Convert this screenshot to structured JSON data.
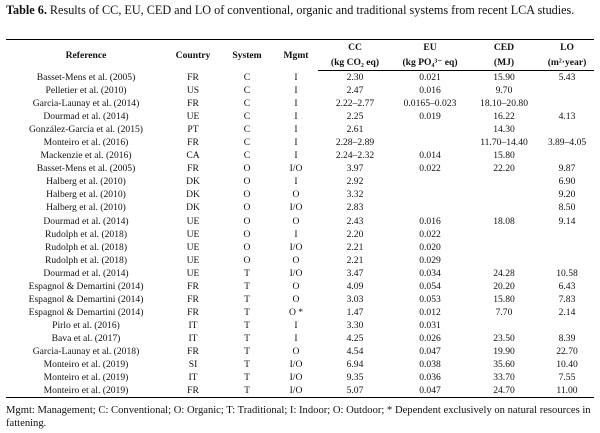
{
  "caption": {
    "label": "Table 6.",
    "text": "Results of CC, EU, CED and LO of conventional, organic and traditional systems from recent LCA studies."
  },
  "headers": {
    "reference": "Reference",
    "country": "Country",
    "system": "System",
    "mgmt": "Mgmt",
    "cc": "CC",
    "eu": "EU",
    "ced": "CED",
    "lo": "LO",
    "cc_unit": "(kg CO₂ eq)",
    "eu_unit": "(kg PO₄³⁻ eq)",
    "ced_unit": "(MJ)",
    "lo_unit": "(m²·year)"
  },
  "rows": [
    {
      "reference": "Basset-Mens et al. (2005)",
      "country": "FR",
      "system": "C",
      "mgmt": "I",
      "cc": "2.30",
      "eu": "0.021",
      "ced": "15.90",
      "lo": "5.43"
    },
    {
      "reference": "Pelletier et al. (2010)",
      "country": "US",
      "system": "C",
      "mgmt": "I",
      "cc": "2.47",
      "eu": "0.016",
      "ced": "9.70",
      "lo": ""
    },
    {
      "reference": "Garcia-Launay et al. (2014)",
      "country": "FR",
      "system": "C",
      "mgmt": "I",
      "cc": "2.22–2.77",
      "eu": "0.0165–0.023",
      "ced": "18.10–20.80",
      "lo": ""
    },
    {
      "reference": "Dourmad et al. (2014)",
      "country": "UE",
      "system": "C",
      "mgmt": "I",
      "cc": "2.25",
      "eu": "0.019",
      "ced": "16.22",
      "lo": "4.13"
    },
    {
      "reference": "González-García et al. (2015)",
      "country": "PT",
      "system": "C",
      "mgmt": "I",
      "cc": "2.61",
      "eu": "",
      "ced": "14.30",
      "lo": ""
    },
    {
      "reference": "Monteiro et al. (2016)",
      "country": "FR",
      "system": "C",
      "mgmt": "I",
      "cc": "2.28–2.89",
      "eu": "",
      "ced": "11.70–14.40",
      "lo": "3.89–4.05"
    },
    {
      "reference": "Mackenzie et al. (2016)",
      "country": "CA",
      "system": "C",
      "mgmt": "I",
      "cc": "2.24–2.32",
      "eu": "0.014",
      "ced": "15.80",
      "lo": ""
    },
    {
      "reference": "Basset-Mens et al. (2005)",
      "country": "FR",
      "system": "O",
      "mgmt": "I/O",
      "cc": "3.97",
      "eu": "0.022",
      "ced": "22.20",
      "lo": "9.87"
    },
    {
      "reference": "Halberg et al. (2010)",
      "country": "DK",
      "system": "O",
      "mgmt": "I",
      "cc": "2.92",
      "eu": "",
      "ced": "",
      "lo": "6.90"
    },
    {
      "reference": "Halberg et al. (2010)",
      "country": "DK",
      "system": "O",
      "mgmt": "O",
      "cc": "3.32",
      "eu": "",
      "ced": "",
      "lo": "9.20"
    },
    {
      "reference": "Halberg et al. (2010)",
      "country": "DK",
      "system": "O",
      "mgmt": "I/O",
      "cc": "2.83",
      "eu": "",
      "ced": "",
      "lo": "8.50"
    },
    {
      "reference": "Dourmad et al. (2014)",
      "country": "UE",
      "system": "O",
      "mgmt": "O",
      "cc": "2.43",
      "eu": "0.016",
      "ced": "18.08",
      "lo": "9.14"
    },
    {
      "reference": "Rudolph et al. (2018)",
      "country": "UE",
      "system": "O",
      "mgmt": "I",
      "cc": "2.20",
      "eu": "0.022",
      "ced": "",
      "lo": ""
    },
    {
      "reference": "Rudolph et al. (2018)",
      "country": "UE",
      "system": "O",
      "mgmt": "I/O",
      "cc": "2.21",
      "eu": "0.020",
      "ced": "",
      "lo": ""
    },
    {
      "reference": "Rudolph et al. (2018)",
      "country": "UE",
      "system": "O",
      "mgmt": "O",
      "cc": "2.21",
      "eu": "0.029",
      "ced": "",
      "lo": ""
    },
    {
      "reference": "Dourmad et al. (2014)",
      "country": "UE",
      "system": "T",
      "mgmt": "I/O",
      "cc": "3.47",
      "eu": "0.034",
      "ced": "24.28",
      "lo": "10.58"
    },
    {
      "reference": "Espagnol & Demartini (2014)",
      "country": "FR",
      "system": "T",
      "mgmt": "O",
      "cc": "4.09",
      "eu": "0.054",
      "ced": "20.20",
      "lo": "6.43"
    },
    {
      "reference": "Espagnol & Demartini (2014)",
      "country": "FR",
      "system": "T",
      "mgmt": "O",
      "cc": "3.03",
      "eu": "0.053",
      "ced": "15.80",
      "lo": "7.83"
    },
    {
      "reference": "Espagnol & Demartini (2014)",
      "country": "FR",
      "system": "T",
      "mgmt": "O *",
      "cc": "1.47",
      "eu": "0.012",
      "ced": "7.70",
      "lo": "2.14"
    },
    {
      "reference": "Pirlo et al. (2016)",
      "country": "IT",
      "system": "T",
      "mgmt": "I",
      "cc": "3.30",
      "eu": "0.031",
      "ced": "",
      "lo": ""
    },
    {
      "reference": "Bava et al. (2017)",
      "country": "IT",
      "system": "T",
      "mgmt": "I",
      "cc": "4.25",
      "eu": "0.026",
      "ced": "23.50",
      "lo": "8.39"
    },
    {
      "reference": "Garcia-Launay et al. (2018)",
      "country": "FR",
      "system": "T",
      "mgmt": "O",
      "cc": "4.54",
      "eu": "0.047",
      "ced": "19.90",
      "lo": "22.70"
    },
    {
      "reference": "Monteiro et al. (2019)",
      "country": "SI",
      "system": "T",
      "mgmt": "I/O",
      "cc": "6.94",
      "eu": "0.038",
      "ced": "35.60",
      "lo": "10.40"
    },
    {
      "reference": "Monteiro et al. (2019)",
      "country": "IT",
      "system": "T",
      "mgmt": "I/O",
      "cc": "9.35",
      "eu": "0.036",
      "ced": "33.70",
      "lo": "7.55"
    },
    {
      "reference": "Monteiro et al. (2019)",
      "country": "FR",
      "system": "T",
      "mgmt": "I/O",
      "cc": "5.07",
      "eu": "0.047",
      "ced": "24.70",
      "lo": "11.00"
    }
  ],
  "footnote": "Mgmt: Management; C: Conventional; O: Organic; T: Traditional; I: Indoor; O: Outdoor; * Dependent exclusively on natural resources in fattening."
}
